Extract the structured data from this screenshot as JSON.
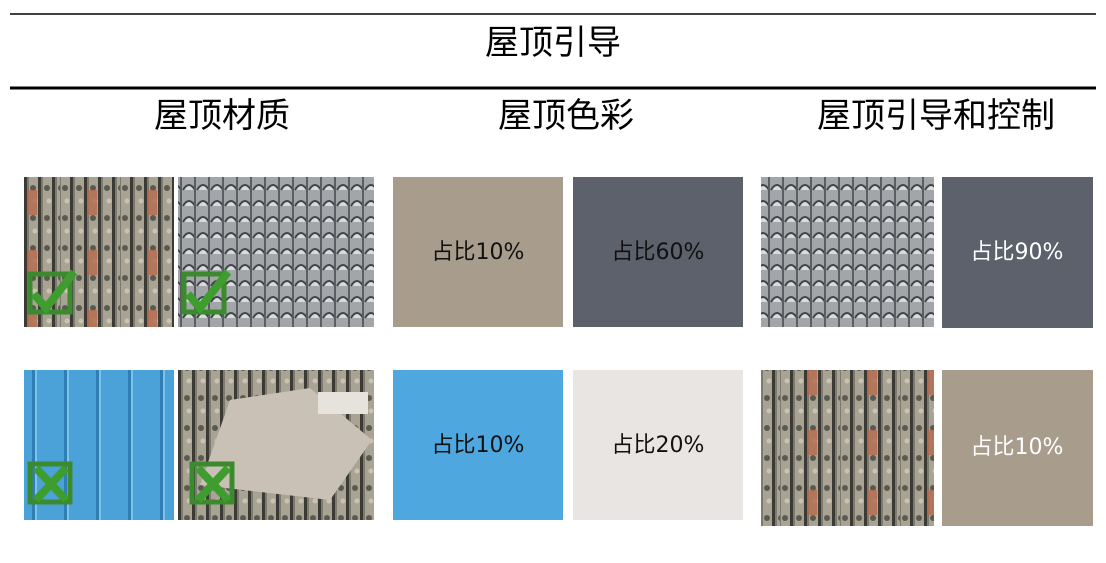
{
  "title": "屋顶引导",
  "columns": [
    "屋顶材质",
    "屋顶色彩",
    "屋顶引导和控制"
  ],
  "swatches": [
    {
      "label": "占比10%",
      "color": "#a89c8c"
    },
    {
      "label": "占比60%",
      "color": "#5d616b"
    },
    {
      "label": "占比90%",
      "color": "#5d616b"
    },
    {
      "label": "占比10%",
      "color": "#4ea7de"
    },
    {
      "label": "占比20%",
      "color": "#e8e5e2"
    },
    {
      "label": "占比10%",
      "color": "#a89c8c"
    }
  ]
}
